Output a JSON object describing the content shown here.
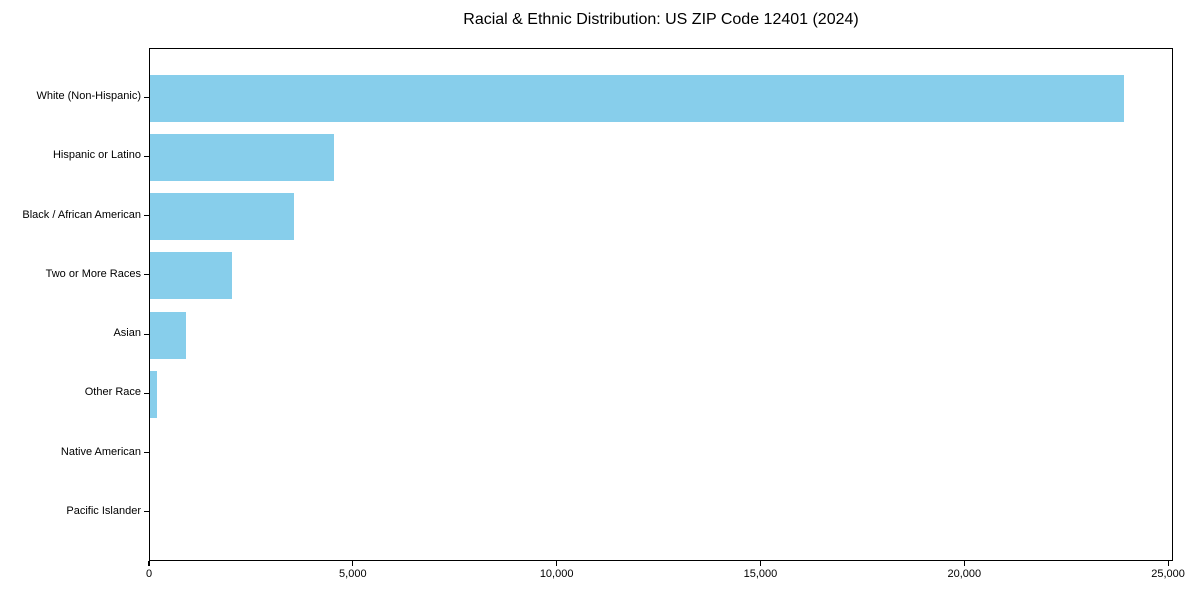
{
  "chart_data": {
    "type": "bar",
    "orientation": "horizontal",
    "title": "Racial & Ethnic Distribution: US ZIP Code 12401 (2024)",
    "categories": [
      "White (Non-Hispanic)",
      "Hispanic or Latino",
      "Black / African American",
      "Two or More Races",
      "Asian",
      "Other Race",
      "Native American",
      "Pacific Islander"
    ],
    "values": [
      23950,
      4520,
      3540,
      2010,
      880,
      180,
      0,
      0
    ],
    "xlabel": "",
    "ylabel": "",
    "xlim": [
      0,
      25120
    ],
    "x_ticks": [
      {
        "value": 0,
        "label": "0"
      },
      {
        "value": 5000,
        "label": "5,000"
      },
      {
        "value": 10000,
        "label": "10,000"
      },
      {
        "value": 15000,
        "label": "15,000"
      },
      {
        "value": 20000,
        "label": "20,000"
      },
      {
        "value": 25000,
        "label": "25,000"
      }
    ],
    "bar_color": "#87CEEB",
    "text_color": "#000000",
    "grid": false,
    "legend": false
  }
}
